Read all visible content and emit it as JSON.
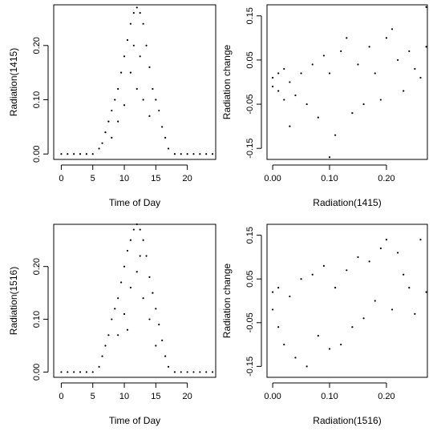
{
  "chart_data": [
    {
      "panel": "top-left",
      "type": "scatter",
      "xlabel": "Time of Day",
      "ylabel": "Radiation(1415)",
      "xlim": [
        -1.2,
        24.5
      ],
      "ylim": [
        -0.01,
        0.275
      ],
      "xticks": [
        0,
        5,
        10,
        15,
        20
      ],
      "xtick_labels": [
        "0",
        "5",
        "10",
        "15",
        "20"
      ],
      "yticks": [
        0.0,
        0.1,
        0.2
      ],
      "ytick_labels": [
        "0.00",
        "0.10",
        "0.20"
      ],
      "marker": "dot",
      "grid": false,
      "points": [
        [
          0,
          0.0
        ],
        [
          1,
          0.0
        ],
        [
          2,
          0.0
        ],
        [
          3,
          0.0
        ],
        [
          4,
          0.0
        ],
        [
          5,
          0.0
        ],
        [
          6,
          0.01
        ],
        [
          6.5,
          0.02
        ],
        [
          7,
          0.04
        ],
        [
          7.5,
          0.06
        ],
        [
          8,
          0.08
        ],
        [
          8.5,
          0.1
        ],
        [
          9,
          0.12
        ],
        [
          9.5,
          0.15
        ],
        [
          10,
          0.18
        ],
        [
          10.5,
          0.21
        ],
        [
          11,
          0.24
        ],
        [
          11.5,
          0.26
        ],
        [
          12,
          0.27
        ],
        [
          12.5,
          0.26
        ],
        [
          13,
          0.24
        ],
        [
          13.5,
          0.2
        ],
        [
          14,
          0.16
        ],
        [
          14.5,
          0.12
        ],
        [
          15,
          0.1
        ],
        [
          15.5,
          0.08
        ],
        [
          16,
          0.05
        ],
        [
          16.5,
          0.03
        ],
        [
          17,
          0.01
        ],
        [
          18,
          0.0
        ],
        [
          19,
          0.0
        ],
        [
          20,
          0.0
        ],
        [
          21,
          0.0
        ],
        [
          22,
          0.0
        ],
        [
          23,
          0.0
        ],
        [
          24,
          0.0
        ],
        [
          10,
          0.09
        ],
        [
          11,
          0.15
        ],
        [
          12,
          0.12
        ],
        [
          13,
          0.1
        ],
        [
          14,
          0.07
        ],
        [
          9,
          0.06
        ],
        [
          8,
          0.03
        ],
        [
          12.5,
          0.18
        ],
        [
          11.5,
          0.2
        ]
      ]
    },
    {
      "panel": "top-right",
      "type": "scatter",
      "xlabel": "Radiation(1415)",
      "ylabel": "Radiation change",
      "xlim": [
        -0.01,
        0.272
      ],
      "ylim": [
        -0.175,
        0.175
      ],
      "xticks": [
        0.0,
        0.1,
        0.2
      ],
      "xtick_labels": [
        "0.00",
        "0.10",
        "0.20"
      ],
      "yticks": [
        -0.15,
        -0.05,
        0.05,
        0.15
      ],
      "ytick_labels": [
        "-0.15",
        "-0.05",
        "0.05",
        "0.15"
      ],
      "marker": "dot",
      "grid": false,
      "points": [
        [
          0.0,
          -0.01
        ],
        [
          0.0,
          0.01
        ],
        [
          0.01,
          -0.02
        ],
        [
          0.01,
          0.02
        ],
        [
          0.02,
          -0.04
        ],
        [
          0.02,
          0.03
        ],
        [
          0.03,
          -0.1
        ],
        [
          0.03,
          0.0
        ],
        [
          0.04,
          -0.03
        ],
        [
          0.05,
          0.02
        ],
        [
          0.06,
          -0.05
        ],
        [
          0.07,
          0.04
        ],
        [
          0.08,
          -0.08
        ],
        [
          0.09,
          0.06
        ],
        [
          0.1,
          -0.17
        ],
        [
          0.1,
          0.02
        ],
        [
          0.11,
          -0.12
        ],
        [
          0.12,
          0.07
        ],
        [
          0.13,
          0.1
        ],
        [
          0.14,
          -0.07
        ],
        [
          0.15,
          0.04
        ],
        [
          0.16,
          -0.05
        ],
        [
          0.17,
          0.08
        ],
        [
          0.18,
          0.02
        ],
        [
          0.19,
          -0.04
        ],
        [
          0.2,
          0.1
        ],
        [
          0.21,
          0.12
        ],
        [
          0.22,
          0.05
        ],
        [
          0.23,
          -0.02
        ],
        [
          0.24,
          0.07
        ],
        [
          0.25,
          0.03
        ],
        [
          0.26,
          0.01
        ],
        [
          0.27,
          0.17
        ],
        [
          0.27,
          0.08
        ]
      ]
    },
    {
      "panel": "bottom-left",
      "type": "scatter",
      "xlabel": "Time of Day",
      "ylabel": "Radiation(1516)",
      "xlim": [
        -1.2,
        24.5
      ],
      "ylim": [
        -0.01,
        0.28
      ],
      "xticks": [
        0,
        5,
        10,
        15,
        20
      ],
      "xtick_labels": [
        "0",
        "5",
        "10",
        "15",
        "20"
      ],
      "yticks": [
        0.0,
        0.1,
        0.2
      ],
      "ytick_labels": [
        "0.00",
        "0.10",
        "0.20"
      ],
      "marker": "dot",
      "grid": false,
      "points": [
        [
          0,
          0.0
        ],
        [
          1,
          0.0
        ],
        [
          2,
          0.0
        ],
        [
          3,
          0.0
        ],
        [
          4,
          0.0
        ],
        [
          5,
          0.0
        ],
        [
          6,
          0.01
        ],
        [
          6.5,
          0.03
        ],
        [
          7,
          0.05
        ],
        [
          7.5,
          0.07
        ],
        [
          8,
          0.1
        ],
        [
          8.5,
          0.12
        ],
        [
          9,
          0.14
        ],
        [
          9.5,
          0.17
        ],
        [
          10,
          0.2
        ],
        [
          10.5,
          0.23
        ],
        [
          11,
          0.25
        ],
        [
          11.5,
          0.27
        ],
        [
          12,
          0.28
        ],
        [
          12.5,
          0.27
        ],
        [
          13,
          0.25
        ],
        [
          13.5,
          0.22
        ],
        [
          14,
          0.18
        ],
        [
          14.5,
          0.15
        ],
        [
          15,
          0.12
        ],
        [
          15.5,
          0.09
        ],
        [
          16,
          0.06
        ],
        [
          16.5,
          0.03
        ],
        [
          17,
          0.01
        ],
        [
          18,
          0.0
        ],
        [
          19,
          0.0
        ],
        [
          20,
          0.0
        ],
        [
          21,
          0.0
        ],
        [
          22,
          0.0
        ],
        [
          23,
          0.0
        ],
        [
          24,
          0.0
        ],
        [
          9,
          0.07
        ],
        [
          10,
          0.11
        ],
        [
          11,
          0.16
        ],
        [
          12,
          0.19
        ],
        [
          13,
          0.14
        ],
        [
          14,
          0.1
        ],
        [
          15,
          0.05
        ],
        [
          10.5,
          0.08
        ],
        [
          12.5,
          0.22
        ]
      ]
    },
    {
      "panel": "bottom-right",
      "type": "scatter",
      "xlabel": "Radiation(1516)",
      "ylabel": "Radiation change",
      "xlim": [
        -0.01,
        0.272
      ],
      "ylim": [
        -0.175,
        0.175
      ],
      "xticks": [
        0.0,
        0.1,
        0.2
      ],
      "xtick_labels": [
        "0.00",
        "0.10",
        "0.20"
      ],
      "yticks": [
        -0.15,
        -0.05,
        0.05,
        0.15
      ],
      "ytick_labels": [
        "-0.15",
        "-0.05",
        "0.05",
        "0.15"
      ],
      "marker": "dot",
      "grid": false,
      "points": [
        [
          0.0,
          -0.02
        ],
        [
          0.0,
          0.02
        ],
        [
          0.01,
          -0.06
        ],
        [
          0.01,
          0.03
        ],
        [
          0.02,
          -0.1
        ],
        [
          0.03,
          0.01
        ],
        [
          0.04,
          -0.13
        ],
        [
          0.05,
          0.05
        ],
        [
          0.06,
          -0.15
        ],
        [
          0.07,
          0.06
        ],
        [
          0.08,
          -0.08
        ],
        [
          0.09,
          0.08
        ],
        [
          0.1,
          -0.11
        ],
        [
          0.11,
          0.03
        ],
        [
          0.12,
          -0.1
        ],
        [
          0.13,
          0.07
        ],
        [
          0.14,
          -0.06
        ],
        [
          0.15,
          0.1
        ],
        [
          0.16,
          -0.04
        ],
        [
          0.17,
          0.09
        ],
        [
          0.18,
          0.0
        ],
        [
          0.19,
          0.12
        ],
        [
          0.2,
          0.14
        ],
        [
          0.21,
          -0.02
        ],
        [
          0.22,
          0.11
        ],
        [
          0.23,
          0.06
        ],
        [
          0.24,
          0.03
        ],
        [
          0.25,
          -0.03
        ],
        [
          0.26,
          0.14
        ],
        [
          0.27,
          0.02
        ]
      ]
    }
  ]
}
